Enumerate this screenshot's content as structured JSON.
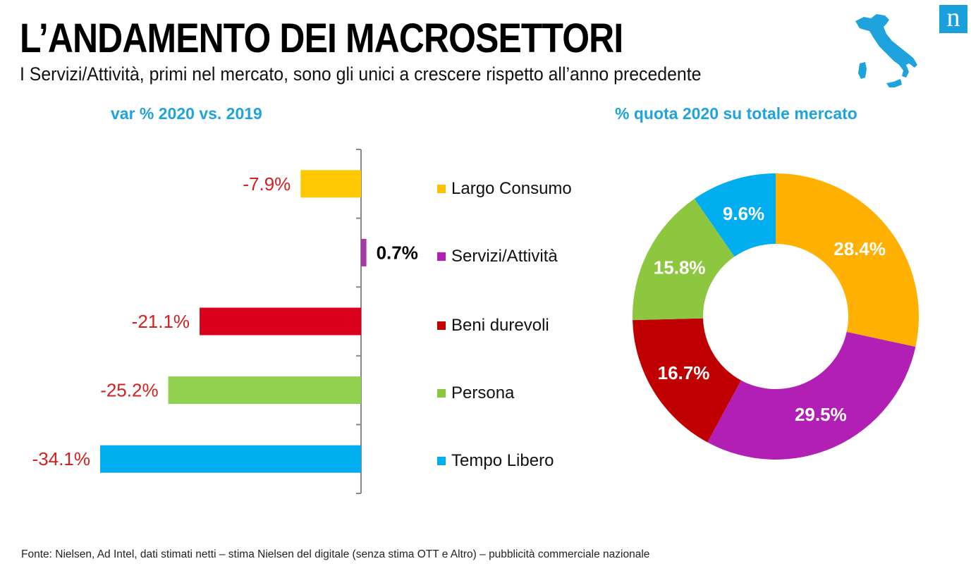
{
  "header": {
    "title": "L’ANDAMENTO DEI MACROSETTORI",
    "subtitle": "I Servizi/Attività, primi nel mercato, sono gli unici a crescere rispetto all’anno precedente",
    "logo_letter": "n",
    "map_icon": "italy-map-icon"
  },
  "footer": {
    "source": "Fonte: Nielsen, Ad Intel, dati stimati netti – stima Nielsen del digitale (senza stima OTT e Altro) – pubblicità commerciale nazionale"
  },
  "chart_data": [
    {
      "type": "bar",
      "orientation": "horizontal",
      "title": "var % 2020 vs. 2019",
      "categories": [
        "Largo Consumo",
        "Servizi/Attività",
        "Beni durevoli",
        "Persona",
        "Tempo Libero"
      ],
      "values": [
        -7.9,
        0.7,
        -21.1,
        -25.2,
        -34.1
      ],
      "data_labels": [
        "-7.9%",
        "0.7%",
        "-21.1%",
        "-25.2%",
        "-34.1%"
      ],
      "colors": [
        "#ffc800",
        "#a63ba8",
        "#d9001b",
        "#92d050",
        "#00aeef"
      ],
      "label_colors": [
        "#d42020",
        "#000000",
        "#d42020",
        "#d42020",
        "#d42020"
      ],
      "xlim": [
        -35,
        1
      ],
      "grid": false
    },
    {
      "type": "pie",
      "variant": "donut",
      "title": "% quota 2020 su totale mercato",
      "categories": [
        "Largo Consumo",
        "Servizi/Attività",
        "Beni durevoli",
        "Persona",
        "Tempo Libero"
      ],
      "values": [
        28.4,
        29.5,
        16.7,
        15.8,
        9.6
      ],
      "data_labels": [
        "28.4%",
        "29.5%",
        "16.7%",
        "15.8%",
        "9.6%"
      ],
      "colors": [
        "#ffb000",
        "#b21fb5",
        "#c00000",
        "#8dc63f",
        "#00aeef"
      ],
      "start_angle": "12 o'clock",
      "direction": "clockwise"
    }
  ],
  "legend": {
    "placement": "center",
    "items": [
      {
        "label": "Largo Consumo",
        "color": "#ffc000"
      },
      {
        "label": "Servizi/Attività",
        "color": "#b21fb5"
      },
      {
        "label": "Beni durevoli",
        "color": "#c00000"
      },
      {
        "label": "Persona",
        "color": "#8dc63f"
      },
      {
        "label": "Tempo Libero",
        "color": "#00aeef"
      }
    ]
  }
}
